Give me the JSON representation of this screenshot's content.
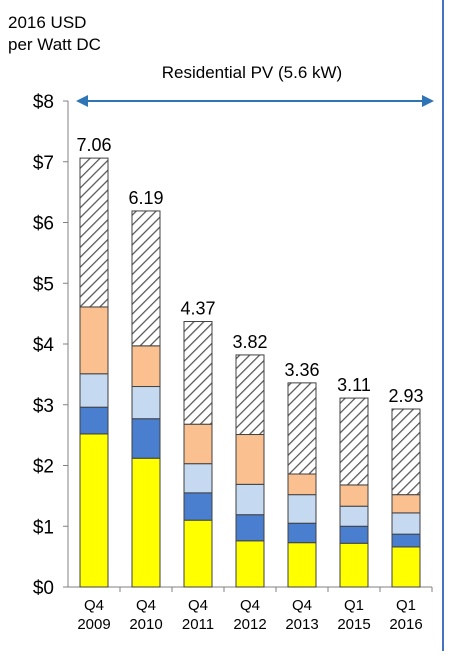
{
  "chart_data": {
    "type": "bar",
    "stacked": true,
    "ylabel_line1": "2016 USD",
    "ylabel_line2": "per Watt DC",
    "span_label": "Residential PV (5.6 kW)",
    "ylim": [
      0,
      8
    ],
    "yticks": [
      "$0",
      "$1",
      "$2",
      "$3",
      "$4",
      "$5",
      "$6",
      "$7",
      "$8"
    ],
    "grid": false,
    "categories": [
      [
        "Q4",
        "2009"
      ],
      [
        "Q4",
        "2010"
      ],
      [
        "Q4",
        "2011"
      ],
      [
        "Q4",
        "2012"
      ],
      [
        "Q4",
        "2013"
      ],
      [
        "Q1",
        "2015"
      ],
      [
        "Q1",
        "2016"
      ]
    ],
    "totals": [
      "7.06",
      "6.19",
      "4.37",
      "3.82",
      "3.36",
      "3.11",
      "2.93"
    ],
    "series": [
      {
        "color": "#FFFF00",
        "values": [
          2.52,
          2.12,
          1.1,
          0.76,
          0.73,
          0.72,
          0.66
        ]
      },
      {
        "color": "#4A7FD0",
        "values": [
          0.44,
          0.65,
          0.45,
          0.43,
          0.32,
          0.28,
          0.21
        ]
      },
      {
        "color": "#C5D9F1",
        "values": [
          0.55,
          0.53,
          0.48,
          0.5,
          0.47,
          0.33,
          0.35
        ]
      },
      {
        "color": "#FAC090",
        "values": [
          1.1,
          0.67,
          0.65,
          0.82,
          0.34,
          0.35,
          0.3
        ]
      },
      {
        "color": "#FFFFFF",
        "pattern": "hatch",
        "values": [
          2.45,
          2.22,
          1.69,
          1.31,
          1.5,
          1.43,
          1.41
        ]
      }
    ]
  }
}
